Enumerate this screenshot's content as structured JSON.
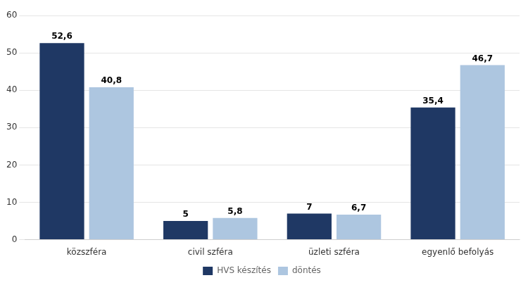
{
  "chart_data": {
    "type": "bar",
    "categories": [
      "közszféra",
      "civil szféra",
      "üzleti szféra",
      "egyenlő befolyás"
    ],
    "series": [
      {
        "name": "HVS készítés",
        "color": "#1f3864",
        "values": [
          52.6,
          5.0,
          7.0,
          35.4
        ],
        "value_labels": [
          "52,6",
          "5",
          "7",
          "35,4"
        ]
      },
      {
        "name": "döntés",
        "color": "#adc6e0",
        "values": [
          40.8,
          5.8,
          6.7,
          46.7
        ],
        "value_labels": [
          "40,8",
          "5,8",
          "6,7",
          "46,7"
        ]
      }
    ],
    "ylim": [
      0,
      60
    ],
    "yticks": [
      0,
      10,
      20,
      30,
      40,
      50,
      60
    ],
    "grid": true,
    "legend": "bottom",
    "data_labels": true
  }
}
